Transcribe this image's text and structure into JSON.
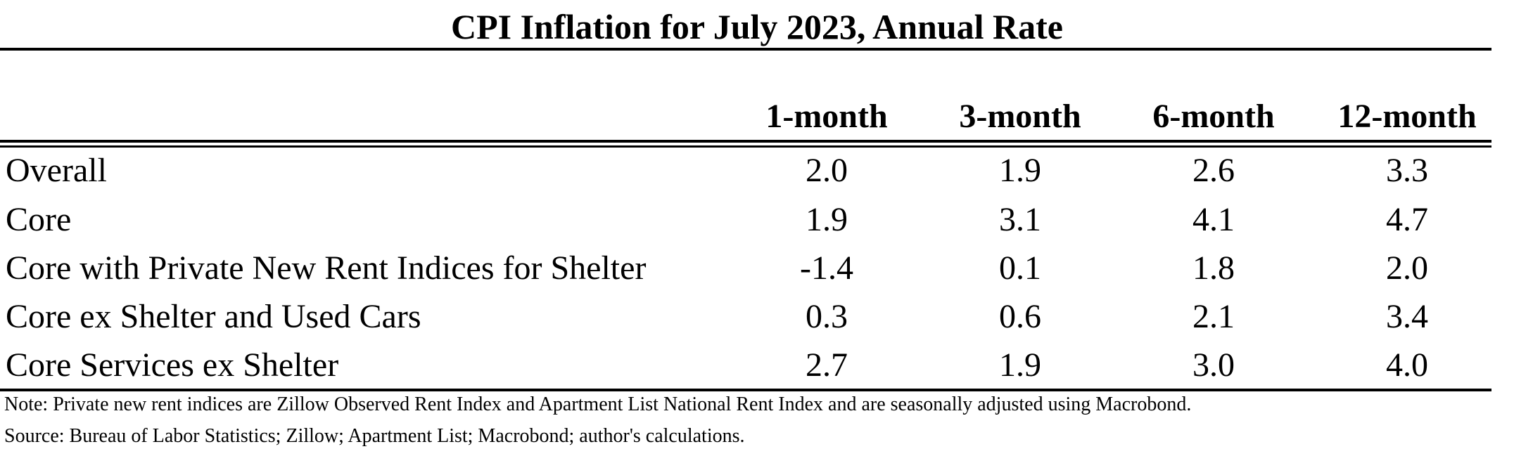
{
  "chart_data": {
    "type": "table",
    "title": "CPI Inflation for July 2023, Annual Rate",
    "columns": [
      "1-month",
      "3-month",
      "6-month",
      "12-month"
    ],
    "rows": [
      {
        "label": "Overall",
        "values": [
          "2.0",
          "1.9",
          "2.6",
          "3.3"
        ]
      },
      {
        "label": "Core",
        "values": [
          "1.9",
          "3.1",
          "4.1",
          "4.7"
        ]
      },
      {
        "label": "Core with Private New Rent Indices for Shelter",
        "values": [
          "-1.4",
          "0.1",
          "1.8",
          "2.0"
        ]
      },
      {
        "label": "Core ex Shelter and Used Cars",
        "values": [
          "0.3",
          "0.6",
          "2.1",
          "3.4"
        ]
      },
      {
        "label": "Core Services ex Shelter",
        "values": [
          "2.7",
          "1.9",
          "3.0",
          "4.0"
        ]
      }
    ],
    "notes": [
      "Note: Private new rent indices are Zillow Observed Rent Index and Apartment List National Rent Index and are seasonally adjusted using Macrobond.",
      "Source: Bureau of Labor Statistics; Zillow; Apartment List; Macrobond; author's calculations."
    ]
  }
}
